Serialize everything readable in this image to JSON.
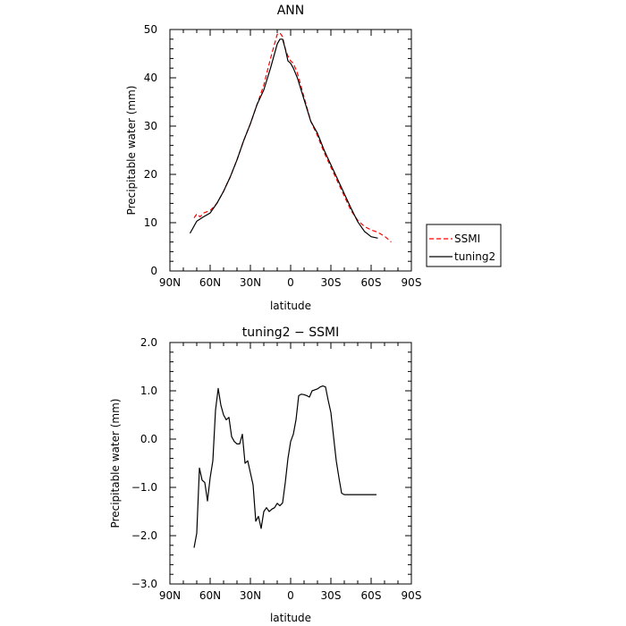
{
  "chart_data": [
    {
      "type": "line",
      "title": "ANN",
      "xlabel": "latitude",
      "ylabel": "Precipitable water (mm)",
      "xlim": [
        90,
        -90
      ],
      "ylim": [
        0,
        50
      ],
      "x_ticks": [
        90,
        60,
        30,
        0,
        -30,
        -60,
        -90
      ],
      "x_tick_labels": [
        "90N",
        "60N",
        "30N",
        "0",
        "30S",
        "60S",
        "90S"
      ],
      "y_ticks": [
        0,
        10,
        20,
        30,
        40,
        50
      ],
      "y_tick_labels": [
        "0",
        "10",
        "20",
        "30",
        "40",
        "50"
      ],
      "legend": "right-bottom-outside",
      "series": [
        {
          "name": "SSMI",
          "color": "#ff0000",
          "dash": "dashed",
          "x": [
            72,
            70,
            67.5,
            65,
            60,
            55,
            50,
            45,
            40,
            35,
            30,
            25,
            20,
            15,
            12,
            10,
            8,
            6,
            4,
            2,
            0,
            -2,
            -5,
            -10,
            -15,
            -20,
            -25,
            -30,
            -35,
            -40,
            -45,
            -50,
            -55,
            -60,
            -65,
            -70,
            -75
          ],
          "values": [
            11,
            11.8,
            11.2,
            12,
            12.5,
            14,
            16.5,
            19.5,
            23,
            27,
            30.5,
            34.5,
            38.5,
            44,
            47,
            49,
            49.3,
            48.5,
            46,
            44.5,
            43.5,
            43,
            41,
            36,
            31,
            28,
            24.5,
            21.5,
            18.5,
            15.5,
            12.5,
            10.5,
            9.2,
            8.5,
            8,
            7.2,
            6
          ]
        },
        {
          "name": "tuning2",
          "color": "#000000",
          "dash": "solid",
          "x": [
            75,
            70,
            65,
            60,
            55,
            50,
            45,
            40,
            35,
            30,
            25,
            20,
            15,
            10,
            8,
            6,
            4,
            2,
            0,
            -2,
            -5,
            -10,
            -15,
            -20,
            -25,
            -30,
            -35,
            -40,
            -45,
            -50,
            -55,
            -60,
            -65
          ],
          "values": [
            7.8,
            10.3,
            11.2,
            12,
            14,
            16.5,
            19.5,
            23,
            27,
            30.5,
            34.5,
            37.5,
            42,
            47,
            48,
            48,
            46,
            43.5,
            43,
            42,
            40,
            35.5,
            31,
            28.5,
            25,
            22,
            19,
            16,
            13,
            10.2,
            8.2,
            7.1,
            6.8
          ]
        }
      ]
    },
    {
      "type": "line",
      "title": "tuning2 − SSMI",
      "xlabel": "latitude",
      "ylabel": "Precipitable water (mm)",
      "xlim": [
        90,
        -90
      ],
      "ylim": [
        -3,
        2
      ],
      "x_ticks": [
        90,
        60,
        30,
        0,
        -30,
        -60,
        -90
      ],
      "x_tick_labels": [
        "90N",
        "60N",
        "30N",
        "0",
        "30S",
        "60S",
        "90S"
      ],
      "y_ticks": [
        -3,
        -2,
        -1,
        0,
        1,
        2
      ],
      "y_tick_labels": [
        "−3.0",
        "−2.0",
        "−1.0",
        "0.0",
        "1.0",
        "2.0"
      ],
      "series": [
        {
          "color": "#000000",
          "dash": "solid",
          "x": [
            72,
            70,
            68,
            66,
            64,
            62,
            60,
            58,
            56,
            54,
            52,
            50,
            48,
            46,
            44,
            42,
            40,
            38,
            36,
            34,
            32,
            30,
            28,
            26,
            24,
            22,
            20,
            18,
            16,
            14,
            12,
            10,
            8,
            6,
            4,
            2,
            0,
            -2,
            -4,
            -6,
            -8,
            -10,
            -12,
            -14,
            -16,
            -18,
            -20,
            -22,
            -24,
            -26,
            -28,
            -30,
            -32,
            -34,
            -36,
            -38,
            -40,
            -42,
            -44,
            -46,
            -48,
            -50,
            -52,
            -54,
            -56,
            -58,
            -60,
            -62,
            -64
          ],
          "values": [
            -2.25,
            -1.95,
            -0.6,
            -0.85,
            -0.9,
            -1.28,
            -0.8,
            -0.45,
            0.6,
            1.05,
            0.7,
            0.5,
            0.4,
            0.45,
            0.05,
            -0.05,
            -0.1,
            -0.1,
            0.1,
            -0.5,
            -0.45,
            -0.7,
            -0.95,
            -1.7,
            -1.6,
            -1.85,
            -1.5,
            -1.42,
            -1.5,
            -1.45,
            -1.42,
            -1.33,
            -1.38,
            -1.32,
            -0.9,
            -0.4,
            -0.05,
            0.1,
            0.4,
            0.9,
            0.93,
            0.92,
            0.9,
            0.87,
            1.0,
            1.02,
            1.04,
            1.08,
            1.1,
            1.08,
            0.8,
            0.55,
            0.05,
            -0.45,
            -0.8,
            -1.12,
            -1.15,
            -1.15,
            -1.15,
            -1.15,
            -1.15,
            -1.15,
            -1.15,
            -1.15,
            -1.15,
            -1.15,
            -1.15,
            -1.15,
            -1.15
          ]
        }
      ]
    }
  ],
  "legend": {
    "entries": [
      "SSMI",
      "tuning2"
    ]
  }
}
